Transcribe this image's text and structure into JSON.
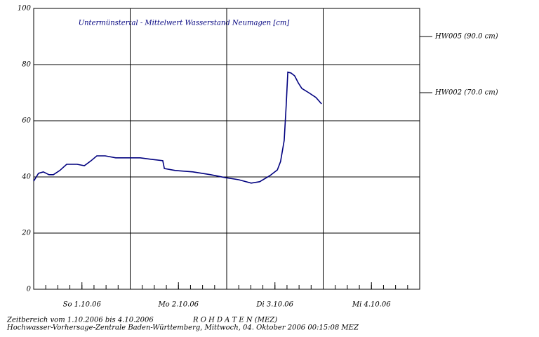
{
  "chart_data": {
    "type": "line",
    "title": "Untermünstertal - Mittelwert Wasserstand Neumagen [cm]",
    "x": [
      0,
      1.2,
      2.4,
      3.8,
      4.9,
      6.5,
      8.2,
      10.8,
      12.6,
      14.3,
      15.7,
      17.8,
      20.4,
      26.5,
      29.1,
      32.1,
      32.5,
      35.2,
      39.6,
      44,
      47.5,
      51,
      54.1,
      56.2,
      58.8,
      60.6,
      61.4,
      62.3,
      62.8,
      63.2,
      64,
      64.9,
      65.8,
      66.7,
      68.4,
      70.2,
      71.6
    ],
    "series": [
      {
        "color": "#00007f",
        "values": [
          38.5,
          41.3,
          41.8,
          40.8,
          40.8,
          42.3,
          44.5,
          44.5,
          44,
          45.8,
          47.5,
          47.5,
          46.8,
          46.8,
          46.3,
          45.8,
          43,
          42.3,
          41.8,
          40.8,
          39.8,
          39,
          37.8,
          38.3,
          40.5,
          42.5,
          45.5,
          53,
          65.5,
          77.3,
          77,
          76,
          73.5,
          71.5,
          70,
          68.3,
          66
        ]
      }
    ],
    "xlim": [
      0,
      96
    ],
    "xticks": [
      {
        "value": 12,
        "label": "So 1.10.06"
      },
      {
        "value": 36,
        "label": "Mo 2.10.06"
      },
      {
        "value": 60,
        "label": "Di 3.10.06"
      },
      {
        "value": 84,
        "label": "Mi 4.10.06"
      }
    ],
    "xgrid": [
      24,
      48,
      72
    ],
    "ylim": [
      0,
      100
    ],
    "yticks": [
      0,
      20,
      40,
      60,
      80,
      100
    ],
    "grid": true,
    "thresholds": [
      {
        "value": 90,
        "label": "HW005 (90.0 cm)"
      },
      {
        "value": 70,
        "label": "HW002 (70.0 cm)"
      }
    ],
    "footer": [
      "Zeitbereich vom 1.10.2006 bis 4.10.2006",
      "R O H D A T E N (MEZ)",
      "Hochwasser-Vorhersage-Zentrale Baden-Württemberg, Mittwoch, 04. Oktober 2006 00:15:08 MEZ"
    ]
  }
}
